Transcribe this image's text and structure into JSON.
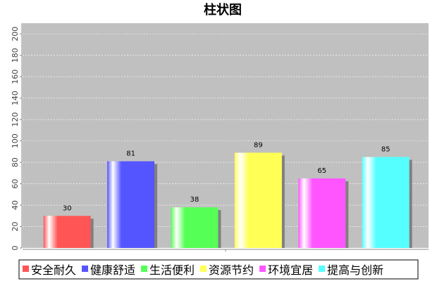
{
  "chart_data": {
    "type": "bar",
    "title": "柱状图",
    "categories": [
      "安全耐久",
      "健康舒适",
      "生活便利",
      "资源节约",
      "环境宜居",
      "提高与创新"
    ],
    "values": [
      30,
      81,
      38,
      89,
      65,
      85
    ],
    "colors": [
      "#ff5555",
      "#5555ff",
      "#55ff55",
      "#ffff55",
      "#ff55ff",
      "#55ffff"
    ],
    "ylim": [
      0,
      210
    ],
    "yticks": [
      0,
      20,
      40,
      60,
      80,
      100,
      120,
      140,
      160,
      180,
      200
    ],
    "grid": true,
    "legend": "bottom"
  }
}
